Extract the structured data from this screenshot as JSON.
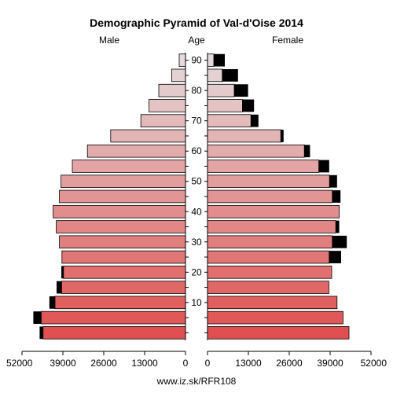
{
  "chart_data": {
    "type": "bar",
    "title": "Demographic Pyramid of Val-d'Oise 2014",
    "male_label": "Male",
    "age_label": "Age",
    "female_label": "Female",
    "footer": "www.iz.sk/RFR108",
    "axis_max": 52000,
    "x_ticks": [
      "52000",
      "39000",
      "26000",
      "13000",
      "0",
      "0",
      "13000",
      "26000",
      "39000",
      "52000"
    ],
    "age_ticks": [
      {
        "label": "10",
        "group": 2
      },
      {
        "label": "20",
        "group": 4
      },
      {
        "label": "30",
        "group": 6
      },
      {
        "label": "40",
        "group": 8
      },
      {
        "label": "50",
        "group": 10
      },
      {
        "label": "60",
        "group": 12
      },
      {
        "label": "70",
        "group": 14
      },
      {
        "label": "80",
        "group": 16
      },
      {
        "label": "90",
        "group": 18
      }
    ],
    "age_groups": [
      "0-4",
      "5-9",
      "10-14",
      "15-19",
      "20-24",
      "25-29",
      "30-34",
      "35-39",
      "40-44",
      "45-49",
      "50-54",
      "55-59",
      "60-64",
      "65-69",
      "70-74",
      "75-79",
      "80-84",
      "85-89",
      "90+"
    ],
    "male": [
      45300,
      45900,
      41500,
      39400,
      38800,
      39300,
      40100,
      41100,
      42100,
      40100,
      39600,
      36000,
      31200,
      23800,
      14200,
      11600,
      8500,
      4400,
      2000
    ],
    "male_excess": [
      1100,
      2500,
      1800,
      1600,
      700,
      0,
      0,
      0,
      0,
      0,
      0,
      0,
      0,
      0,
      0,
      0,
      0,
      0,
      0
    ],
    "female": [
      45000,
      43100,
      41200,
      38600,
      39500,
      38700,
      39700,
      40800,
      41900,
      39700,
      38800,
      35400,
      30800,
      23300,
      13800,
      11100,
      8500,
      4700,
      2000
    ],
    "female_excess": [
      0,
      0,
      0,
      0,
      0,
      3800,
      4600,
      1100,
      0,
      2600,
      2400,
      3300,
      1800,
      900,
      2400,
      3700,
      4400,
      5000,
      3500
    ],
    "colors": {
      "young": "#e05050",
      "old": "#e4dada",
      "excess": "#000000",
      "outline": "#000000"
    }
  }
}
